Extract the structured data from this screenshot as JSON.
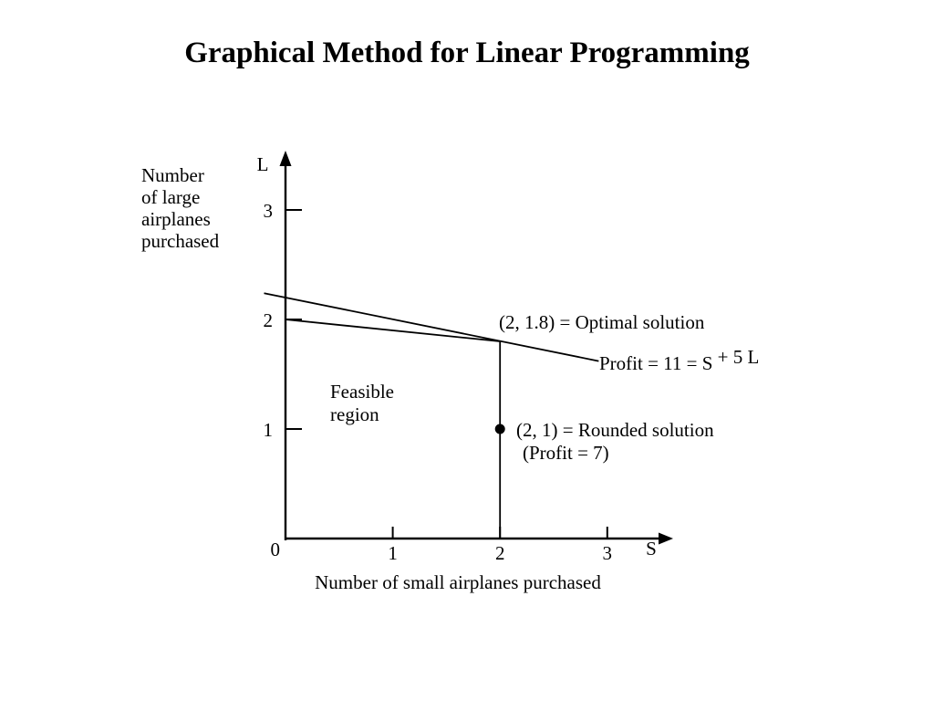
{
  "title": "Graphical Method for Linear Programming",
  "colors": {
    "feasible_fill": "#e96b66",
    "line": "#000000",
    "background": "#ffffff"
  },
  "chart_data": {
    "type": "area",
    "title": "Graphical Method for Linear Programming",
    "xlabel": "Number of small airplanes purchased",
    "ylabel": "Number of large airplanes purchased",
    "ylabel_lines": [
      "Number",
      "of large",
      "airplanes",
      "purchased"
    ],
    "x_axis_symbol": "S",
    "y_axis_symbol": "L",
    "origin_label": "0",
    "x_ticks": [
      1,
      2,
      3
    ],
    "y_ticks": [
      1,
      2,
      3
    ],
    "xlim": [
      0,
      3.5
    ],
    "ylim": [
      0,
      3.5
    ],
    "feasible_region": {
      "vertices": [
        [
          0,
          0
        ],
        [
          0,
          2
        ],
        [
          2,
          1.8
        ],
        [
          2,
          0
        ]
      ],
      "label": "Feasible region",
      "label_lines": [
        "Feasible",
        "region"
      ]
    },
    "profit_line": {
      "points": [
        [
          -0.2,
          2.24
        ],
        [
          2.92,
          1.62
        ]
      ],
      "equation": "Profit = 11 = S + 5 L",
      "label": "Profit = 11 = S ",
      "label_super": "+ 5 L"
    },
    "optimal_point": {
      "x": 2,
      "y": 1.8,
      "label": "(2, 1.8) = Optimal solution"
    },
    "rounded_point": {
      "x": 2,
      "y": 1,
      "label": "(2, 1) = Rounded solution",
      "sublabel": "(Profit = 7)"
    }
  }
}
